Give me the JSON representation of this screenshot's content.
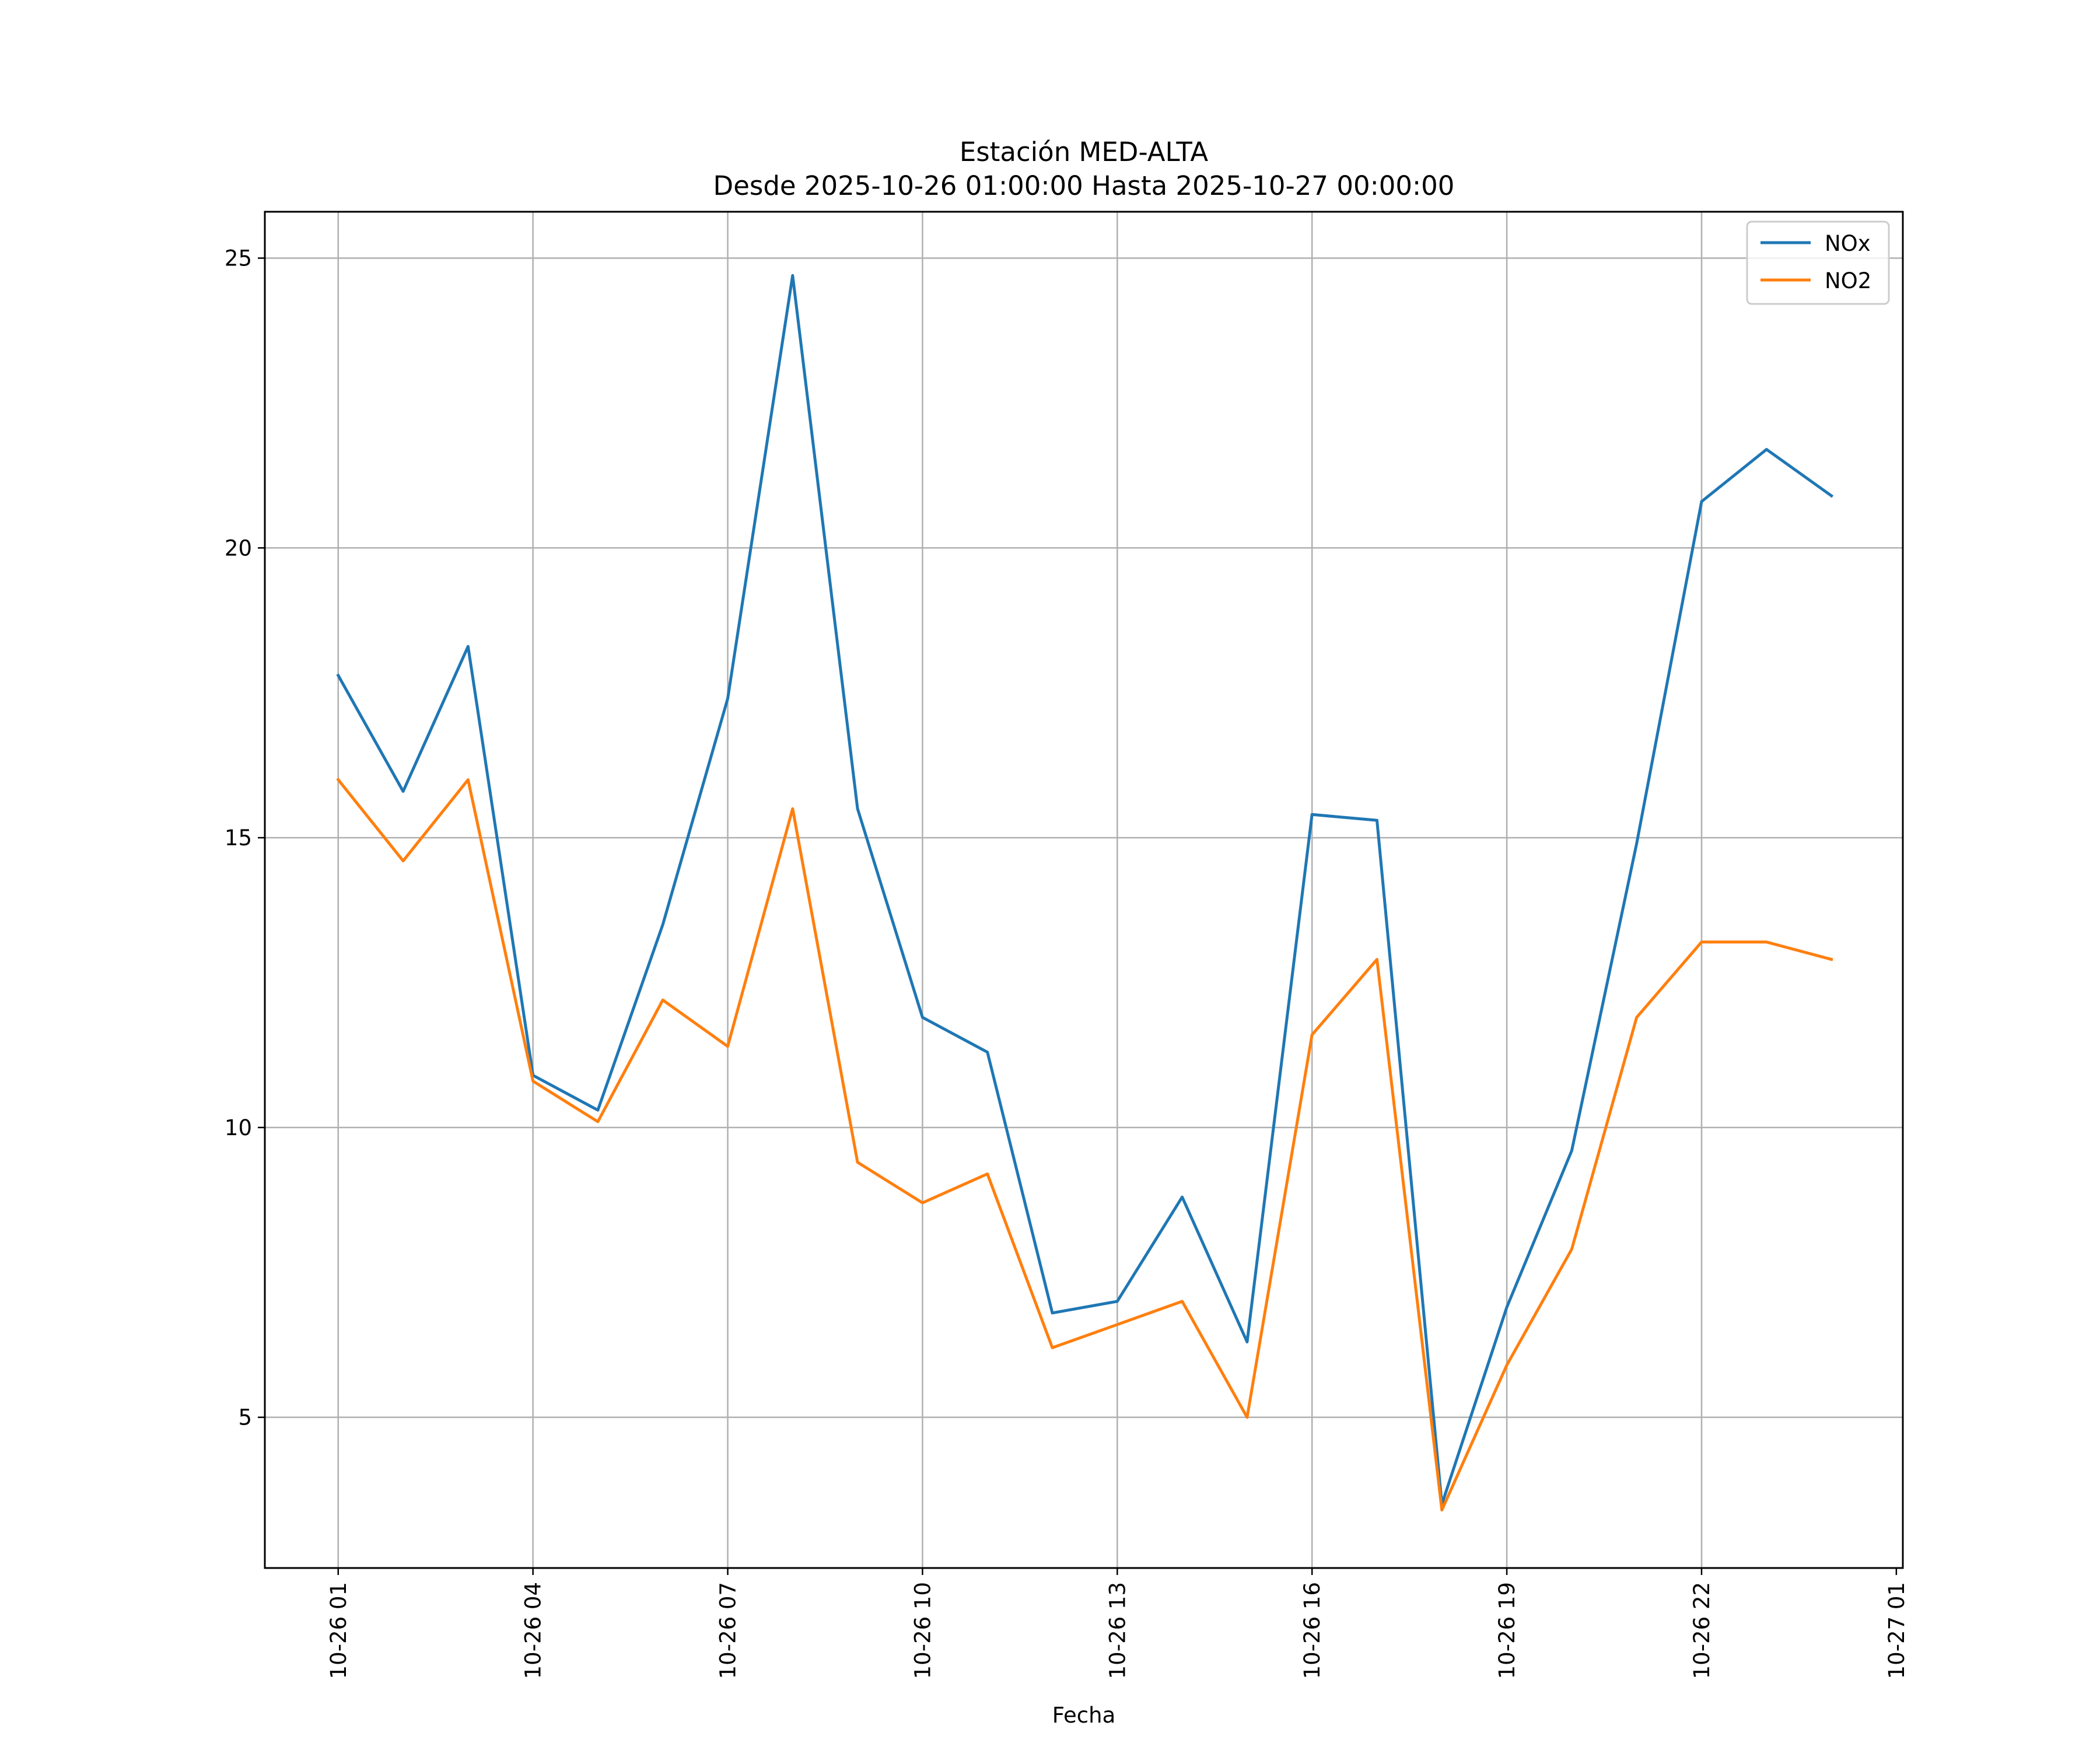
{
  "chart_data": {
    "type": "line",
    "title": "Estación MED-ALTA",
    "subtitle": "Desde 2025-10-26 01:00:00 Hasta 2025-10-27 00:00:00",
    "xlabel": "Fecha",
    "ylabel": "",
    "x_hours": [
      0,
      1,
      2,
      3,
      4,
      5,
      6,
      7,
      8,
      9,
      10,
      11,
      12,
      13,
      14,
      15,
      16,
      17,
      18,
      19,
      20,
      21,
      22,
      23
    ],
    "x_tick_hours": [
      0,
      3,
      6,
      9,
      12,
      15,
      18,
      21,
      24
    ],
    "x_tick_labels": [
      "10-26 01",
      "10-26 04",
      "10-26 07",
      "10-26 10",
      "10-26 13",
      "10-26 16",
      "10-26 19",
      "10-26 22",
      "10-27 01"
    ],
    "xlim": [
      -1.13,
      24.1
    ],
    "ylim": [
      2.4,
      25.8
    ],
    "y_ticks": [
      5,
      10,
      15,
      20,
      25
    ],
    "y_tick_labels": [
      "5",
      "10",
      "15",
      "20",
      "25"
    ],
    "grid": true,
    "legend_position": "upper right",
    "series": [
      {
        "name": "NOx",
        "color": "#1f77b4",
        "values": [
          17.8,
          15.8,
          18.3,
          10.9,
          10.3,
          13.5,
          17.4,
          24.7,
          15.5,
          11.9,
          11.3,
          6.8,
          7.0,
          8.8,
          6.3,
          15.4,
          15.3,
          3.5,
          6.9,
          9.6,
          14.9,
          20.8,
          21.7,
          20.9
        ]
      },
      {
        "name": "NO2",
        "color": "#ff7f0e",
        "values": [
          16.0,
          14.6,
          16.0,
          10.8,
          10.1,
          12.2,
          11.4,
          15.5,
          9.4,
          8.7,
          9.2,
          6.2,
          6.6,
          7.0,
          5.0,
          11.6,
          12.9,
          3.4,
          5.9,
          7.9,
          11.9,
          13.2,
          13.2,
          12.9
        ]
      }
    ]
  }
}
